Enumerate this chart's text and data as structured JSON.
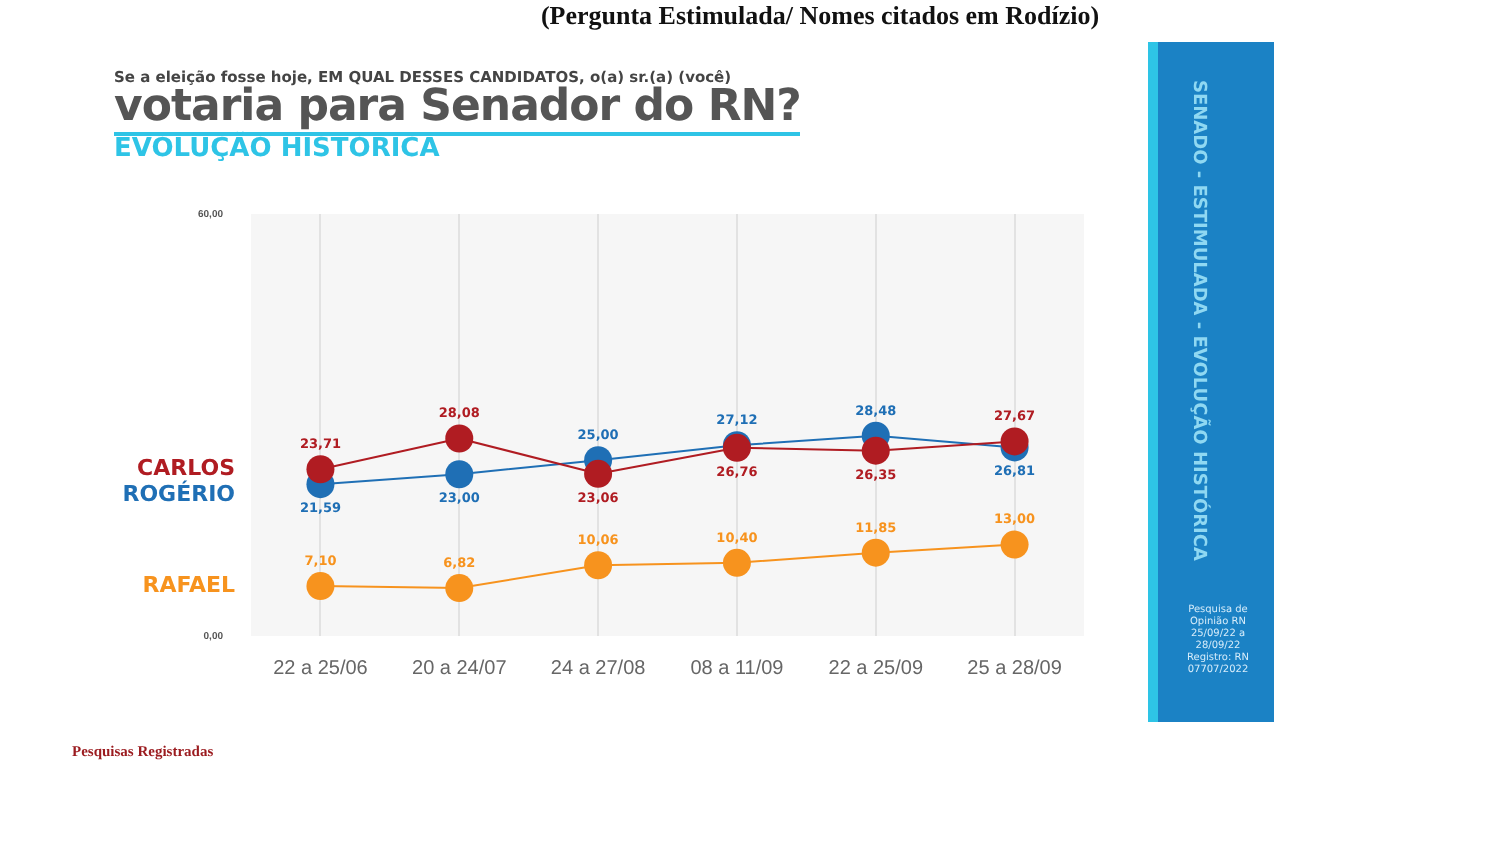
{
  "chart_data": {
    "type": "line",
    "title": "votaria para Senador do RN?",
    "subtitle": "Se a eleição fosse hoje, EM QUAL DESSES CANDIDATOS, o(a) sr.(a) (você)",
    "annotations": [
      "EVOLUÇÃO HISTÓRICA",
      "(Pergunta Estimulada/ Nomes citados em Rodízio)",
      "SENADO - ESTIMULADA - EVOLUÇÃO HISTÓRICA",
      "Pesquisa de Opinião RN 25/09/22 a 28/09/22 Registro: RN 07707/2022",
      "Pesquisas Registradas"
    ],
    "categories": [
      "22 a 25/06",
      "20 a 24/07",
      "24 a 27/08",
      "08 a 11/09",
      "22 a 25/09",
      "25 a 28/09"
    ],
    "series": [
      {
        "name": "CARLOS",
        "color": "#b01c22",
        "values": [
          23.71,
          28.08,
          23.06,
          26.76,
          26.35,
          27.67
        ],
        "value_labels": [
          "23,71",
          "28,08",
          "23,06",
          "26,76",
          "26,35",
          "27,67"
        ]
      },
      {
        "name": "ROGÉRIO",
        "color": "#1f6fb5",
        "values": [
          21.59,
          23.0,
          25.0,
          27.12,
          28.48,
          26.81
        ],
        "value_labels": [
          "21,59",
          "23,00",
          "25,00",
          "27,12",
          "28,48",
          "26,81"
        ]
      },
      {
        "name": "RAFAEL",
        "color": "#f7931e",
        "values": [
          7.1,
          6.82,
          10.06,
          10.4,
          11.85,
          13.0
        ],
        "value_labels": [
          "7,10",
          "6,82",
          "10,06",
          "10,40",
          "11,85",
          "13,00"
        ]
      }
    ],
    "ylim": [
      0,
      60
    ],
    "yticks": [
      {
        "value": 0,
        "label": "0,00"
      },
      {
        "value": 60,
        "label": "60,00"
      }
    ],
    "grid": "x",
    "marker": "circle",
    "line_style": "solid"
  }
}
